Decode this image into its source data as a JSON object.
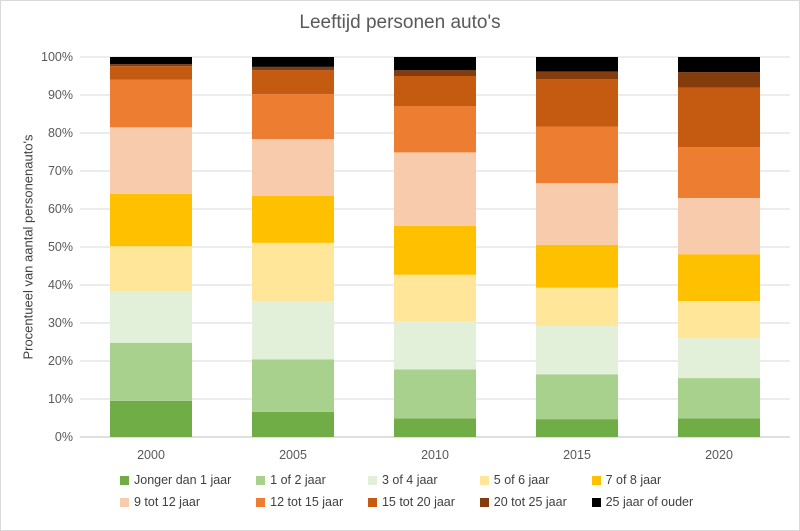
{
  "chart_data": {
    "type": "bar",
    "stacked": true,
    "percent_stacked": true,
    "title": "Leeftijd personen auto's",
    "ylabel": "Procentueel van aantal personenauto's",
    "xlabel": "",
    "ylim": [
      0,
      100
    ],
    "y_ticks": [
      "0%",
      "10%",
      "20%",
      "30%",
      "40%",
      "50%",
      "60%",
      "70%",
      "80%",
      "90%",
      "100%"
    ],
    "categories": [
      "2000",
      "2005",
      "2010",
      "2015",
      "2020"
    ],
    "legend_position": "bottom",
    "gridlines": true,
    "series": [
      {
        "name": "Jonger dan 1 jaar",
        "color": "#70ad47",
        "values": [
          9.5,
          6.6,
          4.9,
          4.7,
          4.9
        ]
      },
      {
        "name": "1 of 2 jaar",
        "color": "#a9d18e",
        "values": [
          15.3,
          13.8,
          12.9,
          11.8,
          10.6
        ]
      },
      {
        "name": "3 of 4 jaar",
        "color": "#e2f0d9",
        "values": [
          13.5,
          15.3,
          12.5,
          12.7,
          10.5
        ]
      },
      {
        "name": "5 of 6 jaar",
        "color": "#ffe699",
        "values": [
          11.9,
          15.4,
          12.4,
          10.1,
          9.8
        ]
      },
      {
        "name": "7 of 8 jaar",
        "color": "#ffc000",
        "values": [
          13.8,
          12.4,
          12.9,
          11.3,
          12.3
        ]
      },
      {
        "name": "9 tot 12 jaar",
        "color": "#f8cbad",
        "values": [
          17.5,
          14.9,
          19.3,
          16.2,
          14.8
        ]
      },
      {
        "name": "12 tot 15 jaar",
        "color": "#ed7d31",
        "values": [
          12.5,
          11.8,
          12.2,
          14.9,
          13.4
        ]
      },
      {
        "name": "15 tot 20 jaar",
        "color": "#c55a11",
        "values": [
          3.6,
          6.3,
          7.9,
          12.5,
          15.6
        ]
      },
      {
        "name": "20 tot 25 jaar",
        "color": "#843c0c",
        "values": [
          0.5,
          0.9,
          1.5,
          2.0,
          4.1
        ]
      },
      {
        "name": "25 jaar of ouder",
        "color": "#000000",
        "values": [
          1.9,
          2.6,
          3.5,
          3.8,
          4.0
        ]
      }
    ]
  }
}
